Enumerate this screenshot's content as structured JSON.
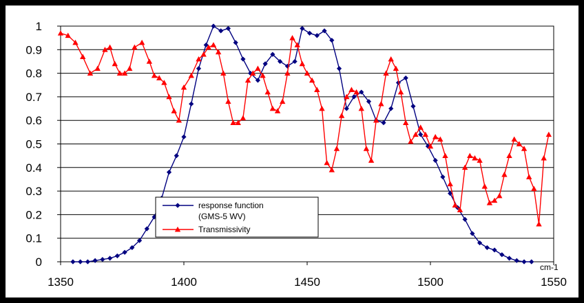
{
  "chart_data": {
    "type": "line",
    "x_unit_label": "cm-1",
    "xlim": [
      1350,
      1550
    ],
    "ylim": [
      0,
      1
    ],
    "x_ticks": [
      1350,
      1400,
      1450,
      1500,
      1550
    ],
    "y_ticks": [
      "0",
      "0.1",
      "0.2",
      "0.3",
      "0.4",
      "0.5",
      "0.6",
      "0.7",
      "0.8",
      "0.9",
      "1"
    ],
    "grid": "horizontal",
    "legend_position": "lower-left inside plot",
    "legend": [
      {
        "line1": "response function",
        "line2": "(GMS-5 WV)"
      },
      {
        "line1": "Transmissivity"
      }
    ],
    "series": [
      {
        "name": "response function (GMS-5 WV)",
        "color": "#000080",
        "marker": "diamond",
        "x": [
          1355,
          1358,
          1361,
          1364,
          1367,
          1370,
          1373,
          1376,
          1379,
          1382,
          1385,
          1388,
          1391,
          1394,
          1397,
          1400,
          1403,
          1406,
          1409,
          1412,
          1415,
          1418,
          1421,
          1424,
          1427,
          1430,
          1433,
          1436,
          1439,
          1442,
          1445,
          1448,
          1451,
          1454,
          1457,
          1460,
          1463,
          1466,
          1469,
          1472,
          1475,
          1478,
          1481,
          1484,
          1487,
          1490,
          1493,
          1496,
          1499,
          1502,
          1505,
          1508,
          1511,
          1514,
          1517,
          1520,
          1523,
          1526,
          1529,
          1532,
          1535,
          1538,
          1541
        ],
        "y": [
          0.0,
          0.0,
          0.0,
          0.005,
          0.01,
          0.015,
          0.025,
          0.04,
          0.06,
          0.09,
          0.14,
          0.19,
          0.27,
          0.38,
          0.45,
          0.53,
          0.67,
          0.82,
          0.92,
          1.0,
          0.98,
          0.99,
          0.93,
          0.86,
          0.8,
          0.77,
          0.84,
          0.88,
          0.85,
          0.83,
          0.85,
          0.99,
          0.97,
          0.96,
          0.98,
          0.94,
          0.82,
          0.65,
          0.7,
          0.72,
          0.68,
          0.6,
          0.59,
          0.65,
          0.76,
          0.78,
          0.66,
          0.54,
          0.49,
          0.43,
          0.36,
          0.29,
          0.23,
          0.18,
          0.12,
          0.08,
          0.06,
          0.05,
          0.03,
          0.015,
          0.005,
          0.0,
          0.0
        ]
      },
      {
        "name": "Transmissivity",
        "color": "#ff0000",
        "marker": "triangle",
        "x": [
          1350,
          1353,
          1356,
          1359,
          1362,
          1365,
          1368,
          1370,
          1372,
          1374,
          1376,
          1378,
          1380,
          1383,
          1386,
          1388,
          1390,
          1392,
          1394,
          1396,
          1398,
          1400,
          1403,
          1406,
          1408,
          1410,
          1412,
          1414,
          1416,
          1418,
          1420,
          1422,
          1424,
          1426,
          1428,
          1430,
          1432,
          1434,
          1436,
          1438,
          1440,
          1442,
          1444,
          1446,
          1448,
          1450,
          1452,
          1454,
          1456,
          1458,
          1460,
          1462,
          1464,
          1466,
          1468,
          1470,
          1472,
          1474,
          1476,
          1478,
          1480,
          1482,
          1484,
          1486,
          1488,
          1490,
          1492,
          1494,
          1496,
          1498,
          1500,
          1502,
          1504,
          1506,
          1508,
          1510,
          1512,
          1514,
          1516,
          1518,
          1520,
          1522,
          1524,
          1526,
          1528,
          1530,
          1532,
          1534,
          1536,
          1538,
          1540,
          1542,
          1544,
          1546,
          1548
        ],
        "y": [
          0.97,
          0.96,
          0.93,
          0.87,
          0.8,
          0.82,
          0.9,
          0.91,
          0.84,
          0.8,
          0.8,
          0.82,
          0.91,
          0.93,
          0.85,
          0.79,
          0.78,
          0.76,
          0.7,
          0.64,
          0.6,
          0.74,
          0.79,
          0.86,
          0.88,
          0.91,
          0.92,
          0.89,
          0.8,
          0.68,
          0.59,
          0.59,
          0.61,
          0.77,
          0.8,
          0.82,
          0.79,
          0.72,
          0.65,
          0.64,
          0.68,
          0.8,
          0.95,
          0.92,
          0.84,
          0.8,
          0.77,
          0.73,
          0.65,
          0.42,
          0.39,
          0.48,
          0.62,
          0.7,
          0.73,
          0.72,
          0.65,
          0.48,
          0.43,
          0.6,
          0.67,
          0.8,
          0.86,
          0.82,
          0.72,
          0.59,
          0.51,
          0.54,
          0.57,
          0.54,
          0.49,
          0.53,
          0.52,
          0.45,
          0.33,
          0.24,
          0.22,
          0.4,
          0.45,
          0.44,
          0.43,
          0.32,
          0.25,
          0.26,
          0.28,
          0.37,
          0.45,
          0.52,
          0.5,
          0.48,
          0.36,
          0.31,
          0.16,
          0.44,
          0.54
        ]
      }
    ]
  }
}
